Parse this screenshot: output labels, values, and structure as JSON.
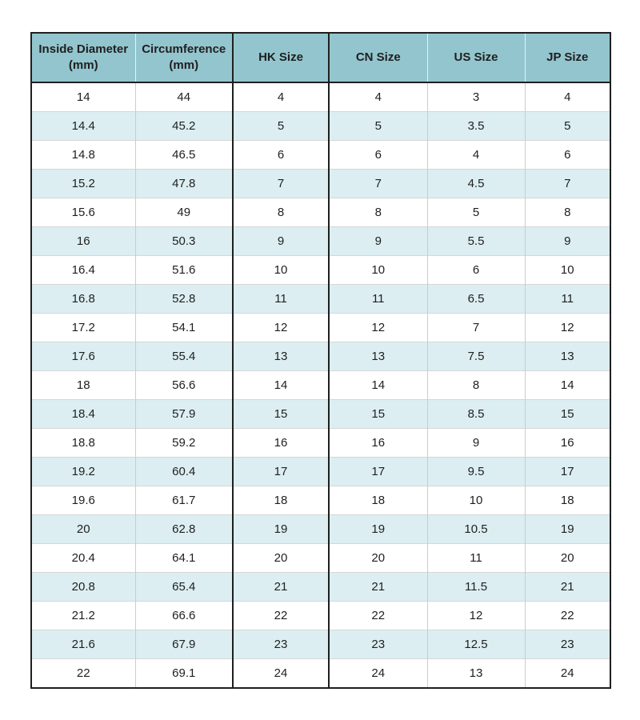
{
  "colors": {
    "header_bg": "#93c5ce",
    "alt_row_bg": "#dceef1",
    "border_dark": "#1f1f1f",
    "column_line": "#cccccc",
    "row_line": "#d6d6d6",
    "text": "#1f1f1f"
  },
  "chart_data": {
    "type": "table",
    "columns": [
      "Inside Diameter (mm)",
      "Circumference (mm)",
      "HK Size",
      "CN Size",
      "US Size",
      "JP Size"
    ],
    "rows": [
      [
        "14",
        "44",
        "4",
        "4",
        "3",
        "4"
      ],
      [
        "14.4",
        "45.2",
        "5",
        "5",
        "3.5",
        "5"
      ],
      [
        "14.8",
        "46.5",
        "6",
        "6",
        "4",
        "6"
      ],
      [
        "15.2",
        "47.8",
        "7",
        "7",
        "4.5",
        "7"
      ],
      [
        "15.6",
        "49",
        "8",
        "8",
        "5",
        "8"
      ],
      [
        "16",
        "50.3",
        "9",
        "9",
        "5.5",
        "9"
      ],
      [
        "16.4",
        "51.6",
        "10",
        "10",
        "6",
        "10"
      ],
      [
        "16.8",
        "52.8",
        "11",
        "11",
        "6.5",
        "11"
      ],
      [
        "17.2",
        "54.1",
        "12",
        "12",
        "7",
        "12"
      ],
      [
        "17.6",
        "55.4",
        "13",
        "13",
        "7.5",
        "13"
      ],
      [
        "18",
        "56.6",
        "14",
        "14",
        "8",
        "14"
      ],
      [
        "18.4",
        "57.9",
        "15",
        "15",
        "8.5",
        "15"
      ],
      [
        "18.8",
        "59.2",
        "16",
        "16",
        "9",
        "16"
      ],
      [
        "19.2",
        "60.4",
        "17",
        "17",
        "9.5",
        "17"
      ],
      [
        "19.6",
        "61.7",
        "18",
        "18",
        "10",
        "18"
      ],
      [
        "20",
        "62.8",
        "19",
        "19",
        "10.5",
        "19"
      ],
      [
        "20.4",
        "64.1",
        "20",
        "20",
        "11",
        "20"
      ],
      [
        "20.8",
        "65.4",
        "21",
        "21",
        "11.5",
        "21"
      ],
      [
        "21.2",
        "66.6",
        "22",
        "22",
        "12",
        "22"
      ],
      [
        "21.6",
        "67.9",
        "23",
        "23",
        "12.5",
        "23"
      ],
      [
        "22",
        "69.1",
        "24",
        "24",
        "13",
        "24"
      ]
    ]
  }
}
